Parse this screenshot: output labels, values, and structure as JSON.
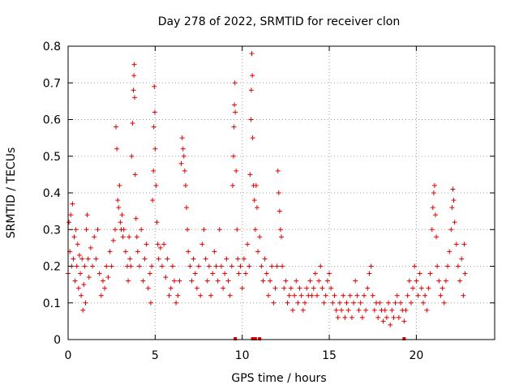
{
  "chart_data": {
    "type": "scatter",
    "title": "Day 278 of 2022, SRMTID for receiver clon",
    "xlabel": "GPS time / hours",
    "ylabel": "SRMTID / TECUs",
    "xlim": [
      0,
      24.5
    ],
    "ylim": [
      0,
      0.8
    ],
    "xticks": [
      0,
      5,
      10,
      15,
      20
    ],
    "xtick_labels": [
      "0",
      "5",
      "10",
      "15",
      "20"
    ],
    "yticks": [
      0,
      0.1,
      0.2,
      0.3,
      0.4,
      0.5,
      0.6,
      0.7,
      0.8
    ],
    "ytick_labels": [
      "0",
      "0.1",
      "0.2",
      "0.3",
      "0.4",
      "0.5",
      "0.6",
      "0.7",
      "0.8"
    ],
    "grid": true,
    "marker": "+",
    "color": "#e00000",
    "series": [
      {
        "name": "SRMTID",
        "points": [
          [
            0.0,
            0.18
          ],
          [
            0.05,
            0.32
          ],
          [
            0.1,
            0.24
          ],
          [
            0.15,
            0.34
          ],
          [
            0.2,
            0.2
          ],
          [
            0.25,
            0.37
          ],
          [
            0.3,
            0.22
          ],
          [
            0.35,
            0.28
          ],
          [
            0.4,
            0.16
          ],
          [
            0.45,
            0.3
          ],
          [
            0.5,
            0.2
          ],
          [
            0.55,
            0.26
          ],
          [
            0.6,
            0.14
          ],
          [
            0.65,
            0.23
          ],
          [
            0.7,
            0.18
          ],
          [
            0.75,
            0.12
          ],
          [
            0.8,
            0.22
          ],
          [
            0.85,
            0.08
          ],
          [
            0.9,
            0.15
          ],
          [
            0.95,
            0.2
          ],
          [
            1.0,
            0.1
          ],
          [
            1.05,
            0.3
          ],
          [
            1.1,
            0.34
          ],
          [
            1.15,
            0.22
          ],
          [
            1.2,
            0.17
          ],
          [
            1.3,
            0.25
          ],
          [
            1.4,
            0.2
          ],
          [
            1.5,
            0.28
          ],
          [
            1.6,
            0.22
          ],
          [
            1.7,
            0.3
          ],
          [
            1.8,
            0.18
          ],
          [
            1.9,
            0.12
          ],
          [
            2.0,
            0.16
          ],
          [
            2.1,
            0.14
          ],
          [
            2.2,
            0.2
          ],
          [
            2.3,
            0.17
          ],
          [
            2.4,
            0.24
          ],
          [
            2.5,
            0.2
          ],
          [
            2.6,
            0.27
          ],
          [
            2.7,
            0.3
          ],
          [
            2.75,
            0.58
          ],
          [
            2.8,
            0.52
          ],
          [
            2.85,
            0.38
          ],
          [
            2.9,
            0.36
          ],
          [
            2.95,
            0.42
          ],
          [
            3.0,
            0.32
          ],
          [
            3.05,
            0.3
          ],
          [
            3.1,
            0.34
          ],
          [
            3.15,
            0.28
          ],
          [
            3.2,
            0.3
          ],
          [
            3.3,
            0.24
          ],
          [
            3.4,
            0.2
          ],
          [
            3.45,
            0.16
          ],
          [
            3.5,
            0.28
          ],
          [
            3.55,
            0.22
          ],
          [
            3.6,
            0.2
          ],
          [
            3.65,
            0.5
          ],
          [
            3.7,
            0.59
          ],
          [
            3.75,
            0.68
          ],
          [
            3.78,
            0.72
          ],
          [
            3.8,
            0.75
          ],
          [
            3.82,
            0.66
          ],
          [
            3.85,
            0.45
          ],
          [
            3.9,
            0.33
          ],
          [
            3.95,
            0.28
          ],
          [
            4.0,
            0.24
          ],
          [
            4.1,
            0.2
          ],
          [
            4.2,
            0.3
          ],
          [
            4.3,
            0.16
          ],
          [
            4.4,
            0.22
          ],
          [
            4.5,
            0.26
          ],
          [
            4.6,
            0.14
          ],
          [
            4.7,
            0.18
          ],
          [
            4.75,
            0.1
          ],
          [
            4.8,
            0.2
          ],
          [
            4.85,
            0.38
          ],
          [
            4.9,
            0.46
          ],
          [
            4.92,
            0.58
          ],
          [
            4.95,
            0.69
          ],
          [
            4.98,
            0.62
          ],
          [
            5.0,
            0.52
          ],
          [
            5.05,
            0.42
          ],
          [
            5.1,
            0.32
          ],
          [
            5.15,
            0.26
          ],
          [
            5.2,
            0.22
          ],
          [
            5.3,
            0.25
          ],
          [
            5.4,
            0.2
          ],
          [
            5.5,
            0.26
          ],
          [
            5.6,
            0.17
          ],
          [
            5.7,
            0.22
          ],
          [
            5.8,
            0.12
          ],
          [
            5.9,
            0.14
          ],
          [
            6.0,
            0.2
          ],
          [
            6.1,
            0.16
          ],
          [
            6.2,
            0.1
          ],
          [
            6.3,
            0.12
          ],
          [
            6.4,
            0.16
          ],
          [
            6.5,
            0.48
          ],
          [
            6.55,
            0.55
          ],
          [
            6.6,
            0.52
          ],
          [
            6.65,
            0.5
          ],
          [
            6.7,
            0.46
          ],
          [
            6.75,
            0.42
          ],
          [
            6.8,
            0.36
          ],
          [
            6.85,
            0.3
          ],
          [
            6.9,
            0.24
          ],
          [
            7.0,
            0.2
          ],
          [
            7.1,
            0.16
          ],
          [
            7.2,
            0.22
          ],
          [
            7.3,
            0.18
          ],
          [
            7.4,
            0.14
          ],
          [
            7.5,
            0.2
          ],
          [
            7.6,
            0.12
          ],
          [
            7.7,
            0.26
          ],
          [
            7.8,
            0.3
          ],
          [
            7.9,
            0.22
          ],
          [
            8.0,
            0.16
          ],
          [
            8.1,
            0.2
          ],
          [
            8.2,
            0.12
          ],
          [
            8.3,
            0.18
          ],
          [
            8.4,
            0.24
          ],
          [
            8.5,
            0.2
          ],
          [
            8.6,
            0.16
          ],
          [
            8.7,
            0.3
          ],
          [
            8.8,
            0.2
          ],
          [
            8.9,
            0.14
          ],
          [
            9.0,
            0.18
          ],
          [
            9.1,
            0.22
          ],
          [
            9.2,
            0.16
          ],
          [
            9.3,
            0.12
          ],
          [
            9.4,
            0.2
          ],
          [
            9.45,
            0.42
          ],
          [
            9.5,
            0.5
          ],
          [
            9.52,
            0.58
          ],
          [
            9.55,
            0.64
          ],
          [
            9.58,
            0.7
          ],
          [
            9.6,
            0.62
          ],
          [
            9.65,
            0.46
          ],
          [
            9.7,
            0.3
          ],
          [
            9.75,
            0.22
          ],
          [
            9.8,
            0.18
          ],
          [
            9.9,
            0.2
          ],
          [
            10.0,
            0.14
          ],
          [
            10.1,
            0.22
          ],
          [
            10.2,
            0.18
          ],
          [
            10.3,
            0.26
          ],
          [
            10.4,
            0.2
          ],
          [
            10.45,
            0.45
          ],
          [
            10.5,
            0.6
          ],
          [
            10.52,
            0.68
          ],
          [
            10.55,
            0.78
          ],
          [
            10.58,
            0.72
          ],
          [
            10.6,
            0.55
          ],
          [
            10.65,
            0.42
          ],
          [
            10.7,
            0.38
          ],
          [
            10.75,
            0.3
          ],
          [
            10.8,
            0.42
          ],
          [
            10.85,
            0.36
          ],
          [
            10.9,
            0.24
          ],
          [
            11.0,
            0.28
          ],
          [
            11.1,
            0.2
          ],
          [
            11.2,
            0.16
          ],
          [
            11.3,
            0.22
          ],
          [
            11.4,
            0.18
          ],
          [
            11.5,
            0.12
          ],
          [
            11.6,
            0.16
          ],
          [
            11.7,
            0.2
          ],
          [
            11.8,
            0.1
          ],
          [
            11.9,
            0.14
          ],
          [
            12.0,
            0.2
          ],
          [
            12.05,
            0.46
          ],
          [
            12.1,
            0.4
          ],
          [
            12.15,
            0.35
          ],
          [
            12.2,
            0.3
          ],
          [
            12.25,
            0.28
          ],
          [
            12.3,
            0.2
          ],
          [
            12.4,
            0.14
          ],
          [
            12.5,
            0.16
          ],
          [
            12.6,
            0.1
          ],
          [
            12.7,
            0.12
          ],
          [
            12.8,
            0.14
          ],
          [
            12.9,
            0.08
          ],
          [
            13.0,
            0.12
          ],
          [
            13.1,
            0.16
          ],
          [
            13.2,
            0.1
          ],
          [
            13.3,
            0.14
          ],
          [
            13.4,
            0.12
          ],
          [
            13.5,
            0.08
          ],
          [
            13.6,
            0.1
          ],
          [
            13.7,
            0.14
          ],
          [
            13.8,
            0.12
          ],
          [
            13.9,
            0.16
          ],
          [
            14.0,
            0.12
          ],
          [
            14.1,
            0.14
          ],
          [
            14.2,
            0.18
          ],
          [
            14.3,
            0.12
          ],
          [
            14.4,
            0.16
          ],
          [
            14.5,
            0.2
          ],
          [
            14.6,
            0.14
          ],
          [
            14.7,
            0.1
          ],
          [
            14.8,
            0.12
          ],
          [
            14.9,
            0.16
          ],
          [
            15.0,
            0.18
          ],
          [
            15.1,
            0.14
          ],
          [
            15.2,
            0.1
          ],
          [
            15.3,
            0.12
          ],
          [
            15.4,
            0.08
          ],
          [
            15.5,
            0.06
          ],
          [
            15.6,
            0.1
          ],
          [
            15.7,
            0.08
          ],
          [
            15.8,
            0.12
          ],
          [
            15.9,
            0.06
          ],
          [
            16.0,
            0.1
          ],
          [
            16.1,
            0.08
          ],
          [
            16.2,
            0.12
          ],
          [
            16.3,
            0.06
          ],
          [
            16.4,
            0.1
          ],
          [
            16.5,
            0.16
          ],
          [
            16.6,
            0.12
          ],
          [
            16.7,
            0.08
          ],
          [
            16.8,
            0.1
          ],
          [
            16.9,
            0.06
          ],
          [
            17.0,
            0.12
          ],
          [
            17.1,
            0.08
          ],
          [
            17.2,
            0.14
          ],
          [
            17.3,
            0.18
          ],
          [
            17.4,
            0.2
          ],
          [
            17.5,
            0.12
          ],
          [
            17.6,
            0.08
          ],
          [
            17.7,
            0.1
          ],
          [
            17.8,
            0.06
          ],
          [
            17.9,
            0.1
          ],
          [
            18.0,
            0.08
          ],
          [
            18.1,
            0.05
          ],
          [
            18.2,
            0.08
          ],
          [
            18.3,
            0.06
          ],
          [
            18.4,
            0.1
          ],
          [
            18.5,
            0.04
          ],
          [
            18.6,
            0.08
          ],
          [
            18.7,
            0.06
          ],
          [
            18.8,
            0.1
          ],
          [
            18.9,
            0.12
          ],
          [
            19.0,
            0.06
          ],
          [
            19.1,
            0.1
          ],
          [
            19.2,
            0.08
          ],
          [
            19.3,
            0.05
          ],
          [
            19.4,
            0.08
          ],
          [
            19.5,
            0.12
          ],
          [
            19.6,
            0.16
          ],
          [
            19.7,
            0.1
          ],
          [
            19.8,
            0.14
          ],
          [
            19.9,
            0.2
          ],
          [
            20.0,
            0.16
          ],
          [
            20.1,
            0.12
          ],
          [
            20.2,
            0.18
          ],
          [
            20.3,
            0.14
          ],
          [
            20.4,
            0.1
          ],
          [
            20.5,
            0.12
          ],
          [
            20.6,
            0.08
          ],
          [
            20.7,
            0.14
          ],
          [
            20.8,
            0.18
          ],
          [
            20.9,
            0.3
          ],
          [
            20.95,
            0.36
          ],
          [
            21.0,
            0.4
          ],
          [
            21.05,
            0.42
          ],
          [
            21.1,
            0.34
          ],
          [
            21.15,
            0.28
          ],
          [
            21.2,
            0.2
          ],
          [
            21.3,
            0.16
          ],
          [
            21.4,
            0.12
          ],
          [
            21.5,
            0.14
          ],
          [
            21.6,
            0.1
          ],
          [
            21.7,
            0.16
          ],
          [
            21.8,
            0.2
          ],
          [
            21.9,
            0.24
          ],
          [
            22.0,
            0.3
          ],
          [
            22.05,
            0.36
          ],
          [
            22.1,
            0.41
          ],
          [
            22.15,
            0.38
          ],
          [
            22.2,
            0.32
          ],
          [
            22.3,
            0.26
          ],
          [
            22.4,
            0.2
          ],
          [
            22.5,
            0.16
          ],
          [
            22.6,
            0.22
          ],
          [
            22.7,
            0.12
          ],
          [
            22.75,
            0.26
          ],
          [
            22.8,
            0.18
          ]
        ]
      }
    ],
    "axis_markers": [
      9.6,
      10.6,
      10.75,
      11.0,
      19.3
    ]
  }
}
